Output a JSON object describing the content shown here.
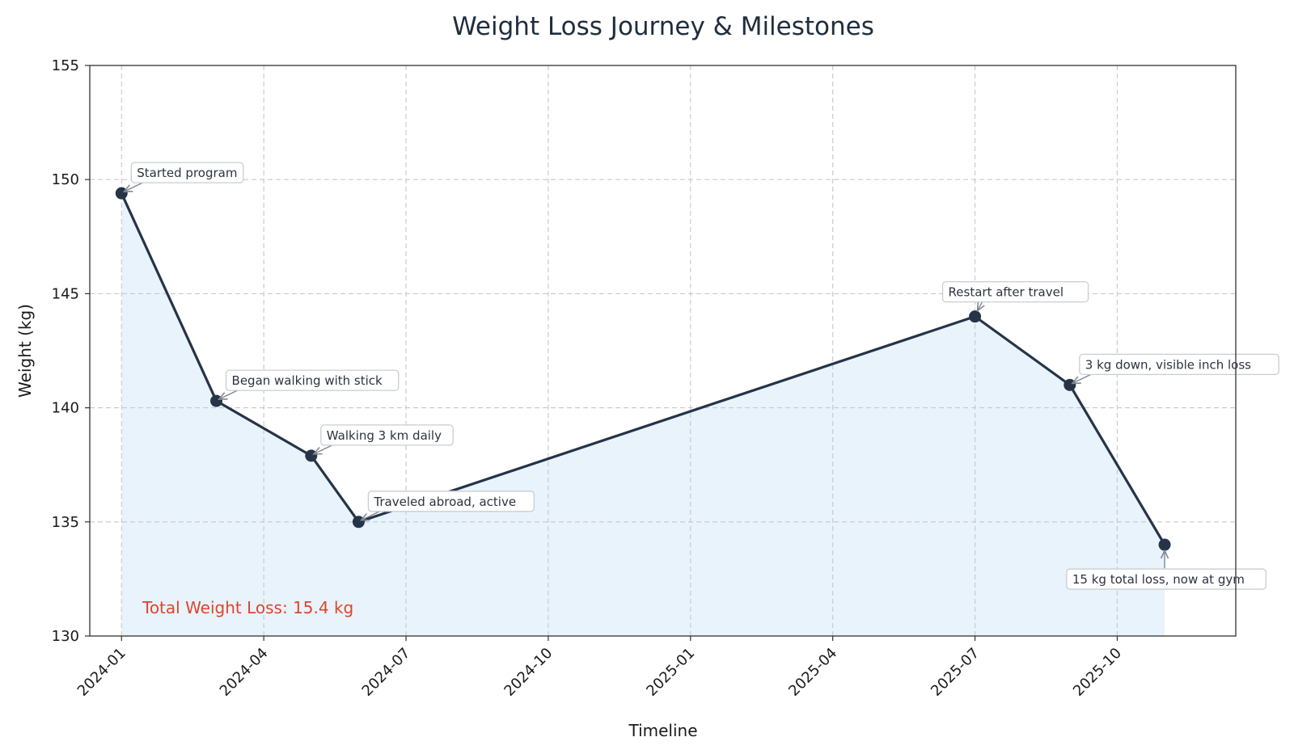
{
  "chart_data": {
    "type": "line",
    "title": "Weight Loss Journey & Milestones",
    "xlabel": "Timeline",
    "ylabel": "Weight (kg)",
    "ylim": [
      130,
      155
    ],
    "yticks": [
      130,
      135,
      140,
      145,
      150,
      155
    ],
    "xlim_months": [
      -0.67,
      23.5
    ],
    "xticks": [
      {
        "label": "2024-01",
        "month": 0
      },
      {
        "label": "2024-04",
        "month": 3
      },
      {
        "label": "2024-07",
        "month": 6
      },
      {
        "label": "2024-10",
        "month": 9
      },
      {
        "label": "2025-01",
        "month": 12
      },
      {
        "label": "2025-04",
        "month": 15
      },
      {
        "label": "2025-07",
        "month": 18
      },
      {
        "label": "2025-10",
        "month": 21
      }
    ],
    "grid": true,
    "area_fill": true,
    "series": [
      {
        "name": "Weight",
        "points": [
          {
            "date": "2024-01",
            "month": 0,
            "weight": 149.4,
            "note": "Started program",
            "note_pos": "upper-right"
          },
          {
            "date": "2024-03",
            "month": 2,
            "weight": 140.3,
            "note": "Began walking with stick",
            "note_pos": "upper-right"
          },
          {
            "date": "2024-05",
            "month": 4,
            "weight": 137.9,
            "note": "Walking 3 km daily",
            "note_pos": "upper-right"
          },
          {
            "date": "2024-06",
            "month": 5,
            "weight": 135.0,
            "note": "Traveled abroad, active",
            "note_pos": "upper-right"
          },
          {
            "date": "2025-07",
            "month": 18,
            "weight": 144.0,
            "note": "Restart after travel",
            "note_pos": "above"
          },
          {
            "date": "2025-09",
            "month": 20,
            "weight": 141.0,
            "note": "3 kg down, visible inch loss",
            "note_pos": "upper-right"
          },
          {
            "date": "2025-11",
            "month": 22,
            "weight": 134.0,
            "note": "15 kg total loss, now at gym",
            "note_pos": "below"
          }
        ]
      }
    ],
    "summary_text": "Total Weight Loss: 15.4 kg",
    "colors": {
      "line": "#253447",
      "marker": "#253447",
      "fill": "#e8f3fc",
      "grid": "#c8c8c8",
      "summary": "#e0442c",
      "arrow": "#7f8790"
    }
  }
}
